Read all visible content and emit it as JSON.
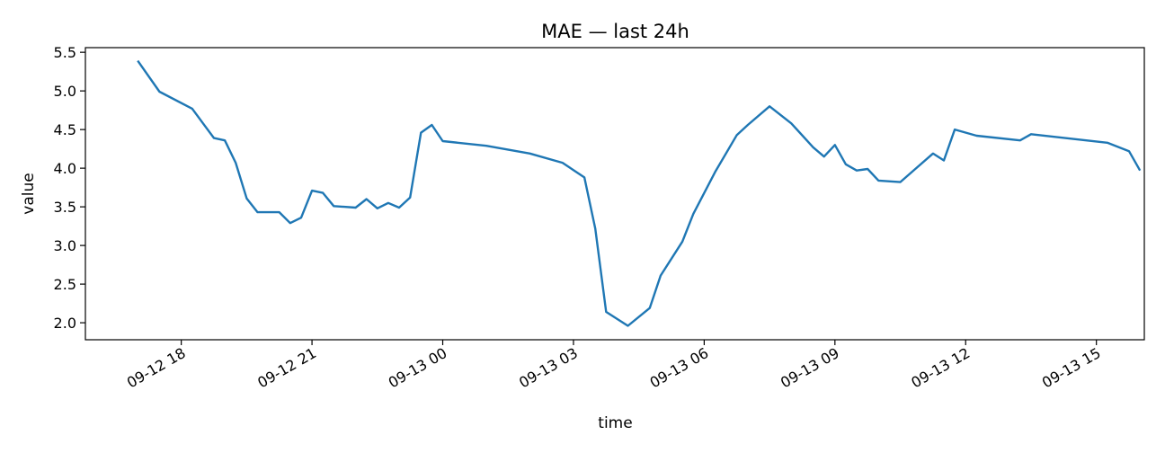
{
  "chart_data": {
    "type": "line",
    "title": "MAE — last 24h",
    "xlabel": "time",
    "ylabel": "value",
    "ylim": [
      1.78,
      5.56
    ],
    "xlim": [
      "2024-09-12T15:48",
      "2024-09-13T16:06"
    ],
    "yticks": [
      2.0,
      2.5,
      3.0,
      3.5,
      4.0,
      4.5,
      5.0,
      5.5
    ],
    "ytick_labels": [
      "2.0",
      "2.5",
      "3.0",
      "3.5",
      "4.0",
      "4.5",
      "5.0",
      "5.5"
    ],
    "xticks": [
      "2024-09-12T18:00",
      "2024-09-12T21:00",
      "2024-09-13T00:00",
      "2024-09-13T03:00",
      "2024-09-13T06:00",
      "2024-09-13T09:00",
      "2024-09-13T12:00",
      "2024-09-13T15:00"
    ],
    "xtick_labels": [
      "09-12 18",
      "09-12 21",
      "09-13 00",
      "09-13 03",
      "09-13 06",
      "09-13 09",
      "09-13 12",
      "09-13 15"
    ],
    "grid": false,
    "line_color": "#1f77b4",
    "series": [
      {
        "x": [
          "2024-09-12T17:00",
          "2024-09-12T17:30",
          "2024-09-12T18:15",
          "2024-09-12T18:30",
          "2024-09-12T18:45",
          "2024-09-12T19:00",
          "2024-09-12T19:15",
          "2024-09-12T19:30",
          "2024-09-12T19:45",
          "2024-09-12T20:15",
          "2024-09-12T20:30",
          "2024-09-12T20:45",
          "2024-09-12T21:00",
          "2024-09-12T21:15",
          "2024-09-12T21:30",
          "2024-09-12T22:00",
          "2024-09-12T22:15",
          "2024-09-12T22:30",
          "2024-09-12T22:45",
          "2024-09-12T23:00",
          "2024-09-12T23:15",
          "2024-09-12T23:30",
          "2024-09-12T23:45",
          "2024-09-13T00:00",
          "2024-09-13T01:00",
          "2024-09-13T02:00",
          "2024-09-13T02:45",
          "2024-09-13T03:15",
          "2024-09-13T03:30",
          "2024-09-13T03:45",
          "2024-09-13T04:15",
          "2024-09-13T04:45",
          "2024-09-13T05:00",
          "2024-09-13T05:30",
          "2024-09-13T05:45",
          "2024-09-13T06:15",
          "2024-09-13T06:45",
          "2024-09-13T07:00",
          "2024-09-13T07:30",
          "2024-09-13T08:00",
          "2024-09-13T08:30",
          "2024-09-13T08:45",
          "2024-09-13T09:00",
          "2024-09-13T09:15",
          "2024-09-13T09:30",
          "2024-09-13T09:45",
          "2024-09-13T10:00",
          "2024-09-13T10:30",
          "2024-09-13T11:15",
          "2024-09-13T11:30",
          "2024-09-13T11:45",
          "2024-09-13T12:15",
          "2024-09-13T13:15",
          "2024-09-13T13:30",
          "2024-09-13T15:15",
          "2024-09-13T15:45",
          "2024-09-13T16:00"
        ],
        "values": [
          5.39,
          4.99,
          4.77,
          4.58,
          4.39,
          4.36,
          4.07,
          3.61,
          3.43,
          3.43,
          3.29,
          3.36,
          3.71,
          3.68,
          3.51,
          3.49,
          3.6,
          3.48,
          3.55,
          3.49,
          3.62,
          4.46,
          4.56,
          4.35,
          4.29,
          4.19,
          4.07,
          3.88,
          3.22,
          2.14,
          1.96,
          2.19,
          2.61,
          3.05,
          3.41,
          3.95,
          4.43,
          4.56,
          4.8,
          4.58,
          4.27,
          4.15,
          4.3,
          4.05,
          3.97,
          3.99,
          3.84,
          3.82,
          4.19,
          4.1,
          4.5,
          4.42,
          4.36,
          4.44,
          4.33,
          4.22,
          3.97
        ]
      }
    ]
  }
}
